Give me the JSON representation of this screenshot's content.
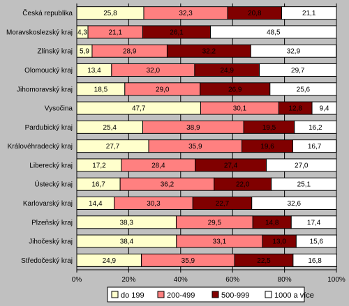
{
  "chart_data": {
    "type": "bar",
    "orientation": "horizontal",
    "stacked": "percent",
    "title": "",
    "xlabel": "",
    "ylabel": "",
    "xlim": [
      0,
      100
    ],
    "x_ticks": [
      "0%",
      "20%",
      "40%",
      "60%",
      "80%",
      "100%"
    ],
    "grid": true,
    "legend_position": "bottom",
    "categories": [
      "Česká republika",
      "Moravskoslezský kraj",
      "Zlínský kraj",
      "Olomoucký kraj",
      "Jihomoravský kraj",
      "Vysočina",
      "Pardubický kraj",
      "Královéhradecký kraj",
      "Liberecký kraj",
      "Ústecký kraj",
      "Karlovarský kraj",
      "Plzeňský kraj",
      "Jihočeský kraj",
      "Středočeský kraj"
    ],
    "series": [
      {
        "name": "do 199",
        "color": "#ffffcc",
        "values": [
          25.8,
          4.3,
          5.9,
          13.4,
          18.5,
          47.7,
          25.4,
          27.7,
          17.2,
          16.7,
          14.4,
          38.3,
          38.4,
          24.9
        ],
        "labels": [
          "25,8",
          "4,3",
          "5,9",
          "13,4",
          "18,5",
          "47,7",
          "25,4",
          "27,7",
          "17,2",
          "16,7",
          "14,4",
          "38,3",
          "38,4",
          "24,9"
        ]
      },
      {
        "name": "200-499",
        "color": "#ff8080",
        "values": [
          32.3,
          21.1,
          28.9,
          32.0,
          29.0,
          30.1,
          38.9,
          35.9,
          28.4,
          36.2,
          30.3,
          29.5,
          33.1,
          35.9
        ],
        "labels": [
          "32,3",
          "21,1",
          "28,9",
          "32,0",
          "29,0",
          "30,1",
          "38,9",
          "35,9",
          "28,4",
          "36,2",
          "30,3",
          "29,5",
          "33,1",
          "35,9"
        ]
      },
      {
        "name": "500-999",
        "color": "#800000",
        "values": [
          20.8,
          26.1,
          32.2,
          24.9,
          26.9,
          12.8,
          19.5,
          19.6,
          27.4,
          22.0,
          22.7,
          14.8,
          13.0,
          22.5
        ],
        "labels": [
          "20,8",
          "26,1",
          "32,2",
          "24,9",
          "26,9",
          "12,8",
          "19,5",
          "19,6",
          "27,4",
          "22,0",
          "22,7",
          "14,8",
          "13,0",
          "22,5"
        ]
      },
      {
        "name": "1000 a více",
        "color": "#ffffff",
        "values": [
          21.1,
          48.5,
          32.9,
          29.7,
          25.6,
          9.4,
          16.2,
          16.7,
          27.0,
          25.1,
          32.6,
          17.4,
          15.6,
          16.8
        ],
        "labels": [
          "21,1",
          "48,5",
          "32,9",
          "29,7",
          "25,6",
          "9,4",
          "16,2",
          "16,7",
          "27,0",
          "25,1",
          "32,6",
          "17,4",
          "15,6",
          "16,8"
        ]
      }
    ]
  }
}
